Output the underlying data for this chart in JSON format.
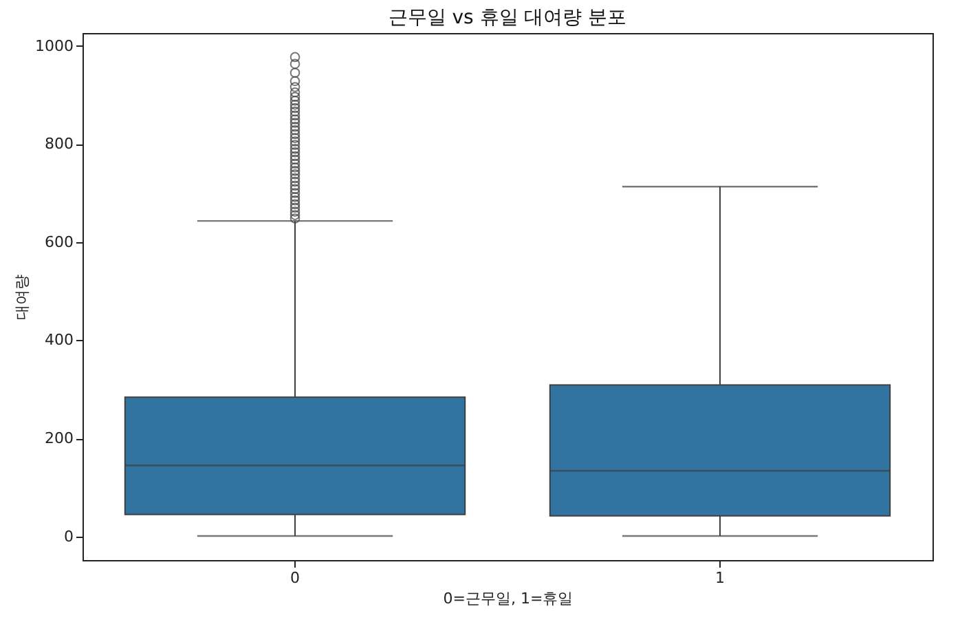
{
  "chart_data": {
    "type": "box",
    "title": "근무일 vs 휴일 대여량 분포",
    "xlabel": "0=근무일, 1=휴일",
    "ylabel": "대여량",
    "categories": [
      "0",
      "1"
    ],
    "series": [
      {
        "color": "#3274a1",
        "boxes": [
          {
            "low": 1,
            "q1": 45,
            "median": 145,
            "q3": 284,
            "high": 643,
            "outliers": [
              648,
              655,
              662,
              670,
              677,
              685,
              692,
              700,
              708,
              715,
              723,
              730,
              738,
              745,
              752,
              760,
              768,
              775,
              783,
              790,
              798,
              805,
              812,
              820,
              828,
              835,
              843,
              850,
              858,
              866,
              873,
              880,
              888,
              896,
              905,
              916,
              928,
              945,
              963,
              977
            ]
          },
          {
            "low": 1,
            "q1": 42,
            "median": 134,
            "q3": 309,
            "high": 713
          }
        ]
      }
    ],
    "ylim": [
      -48,
      1026
    ],
    "yticks": [
      0,
      200,
      400,
      600,
      800,
      1000
    ],
    "grid": false
  }
}
